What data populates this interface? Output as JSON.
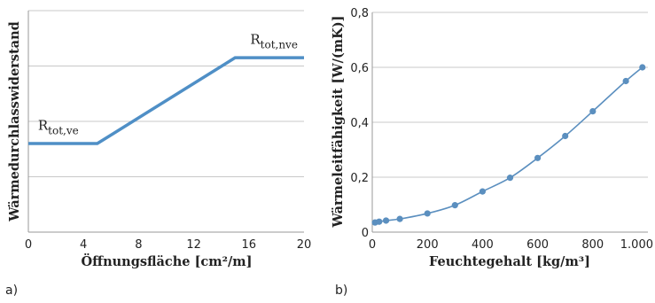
{
  "chart_data": [
    {
      "type": "line",
      "panel_label": "a)",
      "xlabel": "Öffnungsfläche [cm²/m]",
      "ylabel": "Wärmedurchlasswiderstand",
      "xticks": [
        "0",
        "4",
        "8",
        "12",
        "16",
        "20"
      ],
      "xlim": [
        0,
        20
      ],
      "ylim": [
        0,
        4
      ],
      "y_tick_labels_shown": false,
      "grid": "horizontal",
      "series": [
        {
          "x": [
            0,
            5,
            15,
            20
          ],
          "y": [
            1.6,
            1.6,
            3.15,
            3.15
          ],
          "color": "#4f8fc6"
        }
      ],
      "annotations": [
        {
          "text": "R",
          "sub": "tot,ve",
          "x": 0.7,
          "y": 1.85
        },
        {
          "text": "R",
          "sub": "tot,nve",
          "x": 16.1,
          "y": 3.4
        }
      ]
    },
    {
      "type": "line",
      "panel_label": "b)",
      "xlabel": "Feuchtegehalt [kg/m³]",
      "ylabel": "Wärmeleitfähigkeit [W/(mK)]",
      "xticks": [
        "0",
        "200",
        "400",
        "600",
        "800",
        "1.000"
      ],
      "yticks": [
        "0",
        "0,2",
        "0,4",
        "0,6",
        "0,8"
      ],
      "xlim": [
        0,
        1000
      ],
      "ylim": [
        0,
        0.8
      ],
      "grid": "horizontal",
      "series": [
        {
          "x": [
            10,
            25,
            50,
            100,
            200,
            300,
            400,
            500,
            600,
            700,
            800,
            920,
            980
          ],
          "y": [
            0.035,
            0.038,
            0.042,
            0.048,
            0.068,
            0.098,
            0.148,
            0.198,
            0.27,
            0.35,
            0.44,
            0.55,
            0.6
          ],
          "color": "#5b8fbf",
          "markers": true
        }
      ]
    }
  ]
}
